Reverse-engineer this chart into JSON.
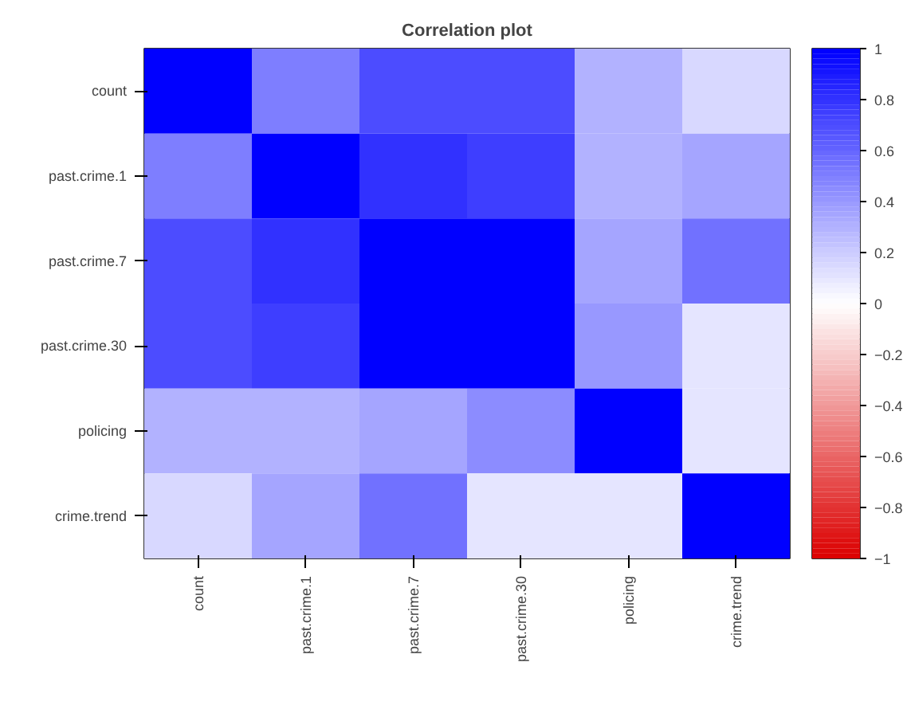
{
  "chart_data": {
    "type": "heatmap",
    "title": "Correlation plot",
    "categories": [
      "count",
      "past.crime.1",
      "past.crime.7",
      "past.crime.30",
      "policing",
      "crime.trend"
    ],
    "y_categories": [
      "count",
      "past.crime.1",
      "past.crime.7",
      "past.crime.30",
      "policing",
      "crime.trend"
    ],
    "cells": [
      [
        1,
        0.5,
        0.7,
        0.7,
        0.3,
        0.15
      ],
      [
        0.5,
        1,
        0.8,
        0.75,
        0.3,
        0.35
      ],
      [
        0.7,
        0.8,
        1,
        1,
        0.35,
        0.55
      ],
      [
        0.7,
        0.75,
        1,
        1,
        0.4,
        0.1
      ],
      [
        0.3,
        0.3,
        0.35,
        0.45,
        1,
        0.1
      ],
      [
        0.15,
        0.35,
        0.55,
        0.1,
        0.1,
        1
      ]
    ],
    "clim": [
      -1,
      1
    ],
    "cticks": [
      1,
      0.8,
      0.6,
      0.4,
      0.2,
      0,
      -0.2,
      -0.4,
      -0.6,
      -0.8,
      -1
    ]
  }
}
